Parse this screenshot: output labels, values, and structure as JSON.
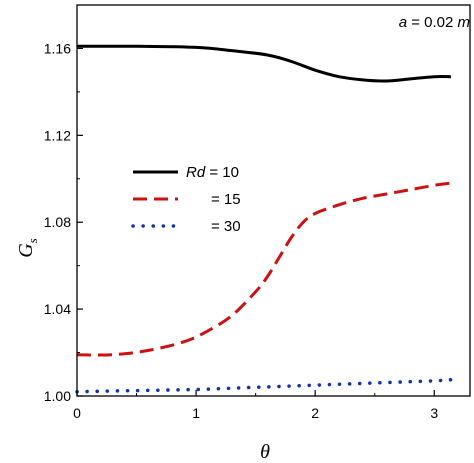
{
  "chart_data": {
    "type": "line",
    "title": "",
    "annotation": {
      "var": "a",
      "text": " = 0.02 ",
      "unit": "m"
    },
    "xlabel": "θ",
    "ylabel": {
      "main": "G",
      "sub": "s"
    },
    "xlim": [
      0,
      3.3
    ],
    "ylim": [
      1.0,
      1.18
    ],
    "xticks": [
      0,
      1,
      2,
      3
    ],
    "xtick_labels": [
      "0",
      "1",
      "2",
      "3"
    ],
    "yticks": [
      1.0,
      1.04,
      1.08,
      1.12,
      1.16
    ],
    "ytick_labels": [
      "1.00",
      "1.04",
      "1.08",
      "1.12",
      "1.16"
    ],
    "grid": false,
    "legend_position": "center-left",
    "series": [
      {
        "name": "Rd = 10",
        "label_var": "Rd",
        "label_value": " = 10",
        "color": "#000000",
        "style": "solid",
        "x": [
          0,
          0.5,
          1.0,
          1.3,
          1.6,
          1.8,
          2.0,
          2.2,
          2.4,
          2.6,
          2.8,
          3.0,
          3.14
        ],
        "y": [
          1.161,
          1.161,
          1.1605,
          1.159,
          1.157,
          1.154,
          1.15,
          1.147,
          1.1455,
          1.145,
          1.146,
          1.147,
          1.147
        ]
      },
      {
        "name": "= 15",
        "label_var": "",
        "label_value": "= 15",
        "color": "#cc1111",
        "style": "dashed",
        "x": [
          0,
          0.3,
          0.6,
          0.9,
          1.1,
          1.3,
          1.5,
          1.6,
          1.7,
          1.8,
          1.9,
          2.0,
          2.2,
          2.4,
          2.6,
          2.8,
          3.0,
          3.14
        ],
        "y": [
          1.019,
          1.019,
          1.021,
          1.025,
          1.03,
          1.037,
          1.048,
          1.055,
          1.064,
          1.073,
          1.08,
          1.084,
          1.088,
          1.091,
          1.093,
          1.095,
          1.097,
          1.098
        ]
      },
      {
        "name": "= 30",
        "label_var": "",
        "label_value": "= 30",
        "color": "#1133aa",
        "style": "dotted",
        "x": [
          0,
          0.5,
          1.0,
          1.5,
          2.0,
          2.5,
          3.0,
          3.14
        ],
        "y": [
          1.002,
          1.0025,
          1.003,
          1.004,
          1.005,
          1.006,
          1.007,
          1.0075
        ]
      }
    ]
  }
}
